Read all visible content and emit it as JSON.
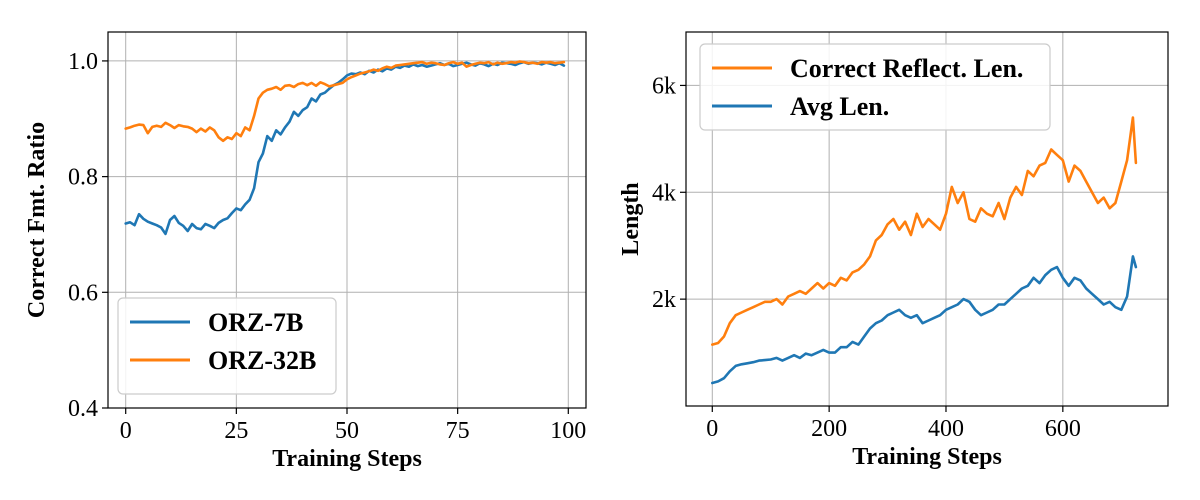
{
  "chart_data": [
    {
      "type": "line",
      "xlabel": "Training Steps",
      "ylabel": "Correct Fmt. Ratio",
      "xlim": [
        -4,
        104
      ],
      "ylim": [
        0.4,
        1.05
      ],
      "xticks": [
        0,
        25,
        50,
        75,
        100
      ],
      "xtick_labels": [
        "0",
        "25",
        "50",
        "75",
        "100"
      ],
      "yticks": [
        0.4,
        0.6,
        0.8,
        1.0
      ],
      "ytick_labels": [
        "0.4",
        "0.6",
        "0.8",
        "1.0"
      ],
      "grid": true,
      "legend_position": "lower-left",
      "series": [
        {
          "name": "ORZ-7B",
          "color": "#1f77b4",
          "x": [
            0,
            1,
            2,
            3,
            4,
            5,
            6,
            7,
            8,
            9,
            10,
            11,
            12,
            13,
            14,
            15,
            16,
            17,
            18,
            19,
            20,
            21,
            22,
            23,
            24,
            25,
            26,
            27,
            28,
            29,
            30,
            31,
            32,
            33,
            34,
            35,
            36,
            37,
            38,
            39,
            40,
            41,
            42,
            43,
            44,
            45,
            46,
            47,
            48,
            49,
            50,
            51,
            52,
            53,
            54,
            55,
            56,
            57,
            58,
            59,
            60,
            61,
            62,
            63,
            64,
            65,
            66,
            67,
            68,
            69,
            70,
            71,
            72,
            73,
            74,
            75,
            76,
            77,
            78,
            79,
            80,
            81,
            82,
            83,
            84,
            85,
            86,
            87,
            88,
            89,
            90,
            91,
            92,
            93,
            94,
            95,
            96,
            97,
            98,
            99
          ],
          "y": [
            0.719,
            0.721,
            0.716,
            0.735,
            0.727,
            0.722,
            0.719,
            0.716,
            0.712,
            0.701,
            0.725,
            0.732,
            0.72,
            0.715,
            0.706,
            0.718,
            0.711,
            0.709,
            0.718,
            0.715,
            0.711,
            0.72,
            0.725,
            0.728,
            0.737,
            0.745,
            0.742,
            0.752,
            0.76,
            0.78,
            0.825,
            0.84,
            0.87,
            0.862,
            0.88,
            0.873,
            0.885,
            0.895,
            0.912,
            0.905,
            0.915,
            0.92,
            0.935,
            0.93,
            0.942,
            0.945,
            0.952,
            0.958,
            0.962,
            0.968,
            0.975,
            0.978,
            0.977,
            0.98,
            0.977,
            0.983,
            0.98,
            0.985,
            0.982,
            0.987,
            0.985,
            0.99,
            0.988,
            0.992,
            0.99,
            0.994,
            0.991,
            0.993,
            0.99,
            0.992,
            0.994,
            0.996,
            0.993,
            0.995,
            0.991,
            0.993,
            0.995,
            0.997,
            0.994,
            0.992,
            0.996,
            0.994,
            0.991,
            0.995,
            0.993,
            0.997,
            0.996,
            0.995,
            0.993,
            0.996,
            0.998,
            0.995,
            0.997,
            0.996,
            0.994,
            0.997,
            0.995,
            0.993,
            0.996,
            0.992
          ]
        },
        {
          "name": "ORZ-32B",
          "color": "#ff7f0e",
          "x": [
            0,
            1,
            2,
            3,
            4,
            5,
            6,
            7,
            8,
            9,
            10,
            11,
            12,
            13,
            14,
            15,
            16,
            17,
            18,
            19,
            20,
            21,
            22,
            23,
            24,
            25,
            26,
            27,
            28,
            29,
            30,
            31,
            32,
            33,
            34,
            35,
            36,
            37,
            38,
            39,
            40,
            41,
            42,
            43,
            44,
            45,
            46,
            47,
            48,
            49,
            50,
            51,
            52,
            53,
            54,
            55,
            56,
            57,
            58,
            59,
            60,
            61,
            62,
            63,
            64,
            65,
            66,
            67,
            68,
            69,
            70,
            71,
            72,
            73,
            74,
            75,
            76,
            77,
            78,
            79,
            80,
            81,
            82,
            83,
            84,
            85,
            86,
            87,
            88,
            89,
            90,
            91,
            92,
            93,
            94,
            95,
            96,
            97,
            98,
            99
          ],
          "y": [
            0.883,
            0.885,
            0.888,
            0.89,
            0.889,
            0.875,
            0.886,
            0.888,
            0.886,
            0.893,
            0.889,
            0.884,
            0.889,
            0.887,
            0.886,
            0.883,
            0.877,
            0.883,
            0.878,
            0.885,
            0.88,
            0.868,
            0.862,
            0.868,
            0.865,
            0.875,
            0.87,
            0.885,
            0.88,
            0.905,
            0.935,
            0.945,
            0.95,
            0.952,
            0.955,
            0.95,
            0.957,
            0.958,
            0.955,
            0.96,
            0.962,
            0.958,
            0.962,
            0.957,
            0.963,
            0.96,
            0.956,
            0.958,
            0.96,
            0.962,
            0.968,
            0.972,
            0.975,
            0.978,
            0.98,
            0.982,
            0.985,
            0.983,
            0.987,
            0.99,
            0.988,
            0.992,
            0.993,
            0.994,
            0.995,
            0.996,
            0.997,
            0.998,
            0.995,
            0.997,
            0.996,
            0.994,
            0.993,
            0.996,
            0.998,
            0.995,
            0.997,
            0.99,
            0.993,
            0.995,
            0.997,
            0.996,
            0.998,
            0.994,
            0.997,
            0.995,
            0.996,
            0.998,
            0.997,
            0.999,
            0.998,
            0.996,
            0.997,
            0.995,
            0.998,
            0.997,
            0.998,
            0.996,
            0.997,
            0.998
          ]
        }
      ]
    },
    {
      "type": "line",
      "xlabel": "Training Steps",
      "ylabel": "Length",
      "xlim": [
        -45,
        780
      ],
      "ylim": [
        0,
        7000
      ],
      "xticks": [
        0,
        200,
        400,
        600
      ],
      "xtick_labels": [
        "0",
        "200",
        "400",
        "600"
      ],
      "yticks": [
        2000,
        4000,
        6000
      ],
      "ytick_labels": [
        "2k",
        "4k",
        "6k"
      ],
      "grid": true,
      "legend_position": "top-left",
      "series": [
        {
          "name": "Correct Reflect. Len.",
          "color": "#ff7f0e",
          "x": [
            0,
            10,
            20,
            30,
            40,
            50,
            60,
            70,
            80,
            90,
            100,
            110,
            120,
            130,
            140,
            150,
            160,
            170,
            180,
            190,
            200,
            210,
            220,
            230,
            240,
            250,
            260,
            270,
            280,
            290,
            300,
            310,
            320,
            330,
            340,
            350,
            360,
            370,
            380,
            390,
            400,
            410,
            420,
            430,
            440,
            450,
            460,
            470,
            480,
            490,
            500,
            510,
            520,
            530,
            540,
            550,
            560,
            570,
            580,
            590,
            600,
            610,
            620,
            630,
            640,
            650,
            660,
            670,
            680,
            690,
            700,
            710,
            720,
            725
          ],
          "y": [
            1150,
            1180,
            1300,
            1550,
            1700,
            1750,
            1800,
            1850,
            1900,
            1950,
            1950,
            2000,
            1900,
            2050,
            2100,
            2150,
            2100,
            2200,
            2300,
            2200,
            2300,
            2250,
            2400,
            2350,
            2500,
            2550,
            2650,
            2800,
            3100,
            3200,
            3400,
            3500,
            3300,
            3450,
            3200,
            3600,
            3350,
            3500,
            3400,
            3300,
            3600,
            4100,
            3800,
            4000,
            3500,
            3450,
            3700,
            3600,
            3550,
            3800,
            3500,
            3900,
            4100,
            3950,
            4400,
            4300,
            4500,
            4550,
            4800,
            4700,
            4600,
            4200,
            4500,
            4400,
            4200,
            4000,
            3800,
            3900,
            3700,
            3800,
            4200,
            4600,
            5400,
            4550
          ]
        },
        {
          "name": "Avg Len.",
          "color": "#1f77b4",
          "x": [
            0,
            10,
            20,
            30,
            40,
            50,
            60,
            70,
            80,
            90,
            100,
            110,
            120,
            130,
            140,
            150,
            160,
            170,
            180,
            190,
            200,
            210,
            220,
            230,
            240,
            250,
            260,
            270,
            280,
            290,
            300,
            310,
            320,
            330,
            340,
            350,
            360,
            370,
            380,
            390,
            400,
            410,
            420,
            430,
            440,
            450,
            460,
            470,
            480,
            490,
            500,
            510,
            520,
            530,
            540,
            550,
            560,
            570,
            580,
            590,
            600,
            610,
            620,
            630,
            640,
            650,
            660,
            670,
            680,
            690,
            700,
            710,
            720,
            725
          ],
          "y": [
            430,
            460,
            520,
            650,
            750,
            780,
            800,
            820,
            850,
            860,
            870,
            900,
            850,
            900,
            950,
            900,
            980,
            950,
            1000,
            1050,
            1000,
            1000,
            1100,
            1100,
            1200,
            1150,
            1300,
            1450,
            1550,
            1600,
            1700,
            1750,
            1800,
            1700,
            1650,
            1700,
            1550,
            1600,
            1650,
            1700,
            1800,
            1850,
            1900,
            2000,
            1950,
            1800,
            1700,
            1750,
            1800,
            1900,
            1900,
            2000,
            2100,
            2200,
            2250,
            2400,
            2300,
            2450,
            2550,
            2600,
            2400,
            2250,
            2400,
            2350,
            2200,
            2100,
            2000,
            1900,
            1950,
            1850,
            1800,
            2050,
            2800,
            2600
          ]
        }
      ]
    }
  ]
}
